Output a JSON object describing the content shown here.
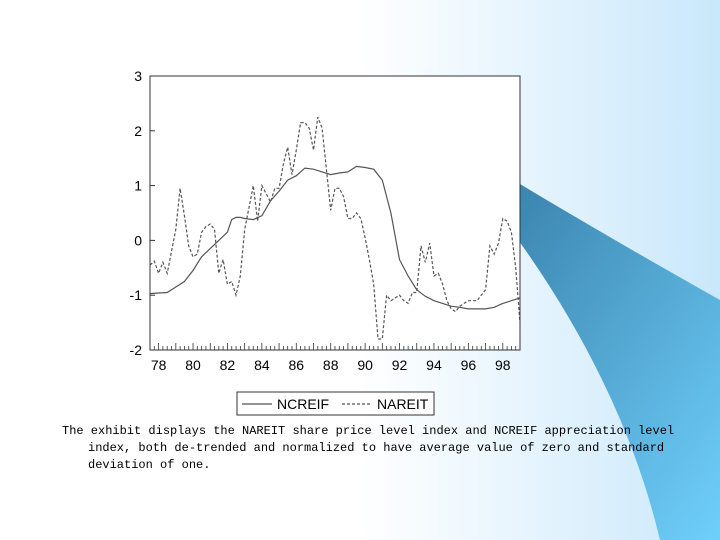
{
  "colors": {
    "background_light": "#ffffff",
    "background_blue": "#c9e8fb",
    "swoosh_dark": "#2c6f99",
    "swoosh_light": "#6fd0fb"
  },
  "caption": "The exhibit displays the NAREIT share price level index and NCREIF appreciation level index, both de-trended and normalized to have average value of zero and standard deviation of one.",
  "chart_data": {
    "type": "line",
    "title": "",
    "xlabel": "",
    "ylabel": "",
    "xlim": [
      1977.5,
      1999
    ],
    "ylim": [
      -2,
      3
    ],
    "x_ticks": [
      1978,
      1980,
      1982,
      1984,
      1986,
      1988,
      1990,
      1992,
      1994,
      1996,
      1998
    ],
    "x_tick_labels": [
      "78",
      "80",
      "82",
      "84",
      "86",
      "88",
      "90",
      "92",
      "94",
      "96",
      "98"
    ],
    "y_ticks": [
      3,
      2,
      1,
      0,
      -1,
      -2
    ],
    "y_tick_labels": [
      "3",
      "2",
      "1",
      "0",
      "-1",
      "-2"
    ],
    "grid": false,
    "legend": "bottom-center",
    "series": [
      {
        "name": "NCREIF",
        "style": "solid",
        "color": "#555555",
        "points": [
          [
            1977.5,
            -0.97
          ],
          [
            1978.0,
            -0.96
          ],
          [
            1978.5,
            -0.95
          ],
          [
            1979.0,
            -0.85
          ],
          [
            1979.5,
            -0.75
          ],
          [
            1980.0,
            -0.55
          ],
          [
            1980.5,
            -0.3
          ],
          [
            1981.0,
            -0.15
          ],
          [
            1981.5,
            0.0
          ],
          [
            1982.0,
            0.15
          ],
          [
            1982.25,
            0.38
          ],
          [
            1982.5,
            0.42
          ],
          [
            1982.75,
            0.42
          ],
          [
            1983.0,
            0.4
          ],
          [
            1983.5,
            0.38
          ],
          [
            1984.0,
            0.45
          ],
          [
            1984.5,
            0.72
          ],
          [
            1985.0,
            0.9
          ],
          [
            1985.5,
            1.1
          ],
          [
            1986.0,
            1.18
          ],
          [
            1986.5,
            1.32
          ],
          [
            1987.0,
            1.3
          ],
          [
            1987.5,
            1.25
          ],
          [
            1988.0,
            1.2
          ],
          [
            1988.5,
            1.23
          ],
          [
            1989.0,
            1.25
          ],
          [
            1989.5,
            1.35
          ],
          [
            1990.0,
            1.33
          ],
          [
            1990.5,
            1.3
          ],
          [
            1991.0,
            1.1
          ],
          [
            1991.5,
            0.5
          ],
          [
            1992.0,
            -0.35
          ],
          [
            1992.5,
            -0.65
          ],
          [
            1993.0,
            -0.9
          ],
          [
            1993.5,
            -1.02
          ],
          [
            1994.0,
            -1.1
          ],
          [
            1994.5,
            -1.15
          ],
          [
            1995.0,
            -1.2
          ],
          [
            1995.5,
            -1.22
          ],
          [
            1996.0,
            -1.25
          ],
          [
            1996.5,
            -1.25
          ],
          [
            1997.0,
            -1.25
          ],
          [
            1997.5,
            -1.22
          ],
          [
            1998.0,
            -1.15
          ],
          [
            1998.5,
            -1.1
          ],
          [
            1999.0,
            -1.05
          ]
        ]
      },
      {
        "name": "NAREIT",
        "style": "dashed",
        "color": "#555555",
        "points": [
          [
            1977.5,
            -0.45
          ],
          [
            1977.75,
            -0.38
          ],
          [
            1978.0,
            -0.6
          ],
          [
            1978.25,
            -0.4
          ],
          [
            1978.5,
            -0.6
          ],
          [
            1978.75,
            -0.2
          ],
          [
            1979.0,
            0.2
          ],
          [
            1979.25,
            0.95
          ],
          [
            1979.5,
            0.45
          ],
          [
            1979.75,
            -0.1
          ],
          [
            1980.0,
            -0.3
          ],
          [
            1980.25,
            -0.25
          ],
          [
            1980.5,
            0.15
          ],
          [
            1980.75,
            0.25
          ],
          [
            1981.0,
            0.3
          ],
          [
            1981.25,
            0.2
          ],
          [
            1981.5,
            -0.6
          ],
          [
            1981.75,
            -0.35
          ],
          [
            1982.0,
            -0.8
          ],
          [
            1982.25,
            -0.75
          ],
          [
            1982.5,
            -1.0
          ],
          [
            1982.75,
            -0.65
          ],
          [
            1983.0,
            0.2
          ],
          [
            1983.5,
            1.0
          ],
          [
            1983.75,
            0.35
          ],
          [
            1984.0,
            1.0
          ],
          [
            1984.25,
            0.85
          ],
          [
            1984.5,
            0.7
          ],
          [
            1984.75,
            0.95
          ],
          [
            1985.0,
            0.95
          ],
          [
            1985.25,
            1.4
          ],
          [
            1985.5,
            1.7
          ],
          [
            1985.75,
            1.2
          ],
          [
            1986.0,
            1.65
          ],
          [
            1986.25,
            2.15
          ],
          [
            1986.5,
            2.15
          ],
          [
            1986.75,
            2.05
          ],
          [
            1987.0,
            1.65
          ],
          [
            1987.25,
            2.25
          ],
          [
            1987.5,
            2.05
          ],
          [
            1987.75,
            1.3
          ],
          [
            1988.0,
            0.55
          ],
          [
            1988.25,
            0.95
          ],
          [
            1988.5,
            0.95
          ],
          [
            1988.75,
            0.8
          ],
          [
            1989.0,
            0.4
          ],
          [
            1989.25,
            0.4
          ],
          [
            1989.5,
            0.5
          ],
          [
            1989.75,
            0.4
          ],
          [
            1990.0,
            0.05
          ],
          [
            1990.25,
            -0.35
          ],
          [
            1990.5,
            -0.8
          ],
          [
            1990.75,
            -1.8
          ],
          [
            1991.0,
            -1.8
          ],
          [
            1991.25,
            -1.0
          ],
          [
            1991.5,
            -1.1
          ],
          [
            1991.75,
            -1.05
          ],
          [
            1992.0,
            -1.0
          ],
          [
            1992.25,
            -1.1
          ],
          [
            1992.5,
            -1.15
          ],
          [
            1992.75,
            -0.95
          ],
          [
            1993.0,
            -0.95
          ],
          [
            1993.25,
            -0.1
          ],
          [
            1993.5,
            -0.4
          ],
          [
            1993.75,
            -0.05
          ],
          [
            1994.0,
            -0.65
          ],
          [
            1994.25,
            -0.6
          ],
          [
            1994.5,
            -0.8
          ],
          [
            1994.75,
            -1.1
          ],
          [
            1995.0,
            -1.25
          ],
          [
            1995.25,
            -1.3
          ],
          [
            1995.5,
            -1.2
          ],
          [
            1995.75,
            -1.15
          ],
          [
            1996.0,
            -1.1
          ],
          [
            1996.5,
            -1.1
          ],
          [
            1997.0,
            -0.9
          ],
          [
            1997.25,
            -0.1
          ],
          [
            1997.5,
            -0.25
          ],
          [
            1997.75,
            -0.05
          ],
          [
            1998.0,
            0.4
          ],
          [
            1998.25,
            0.35
          ],
          [
            1998.5,
            0.15
          ],
          [
            1998.75,
            -0.5
          ],
          [
            1999.0,
            -1.5
          ]
        ]
      }
    ]
  }
}
